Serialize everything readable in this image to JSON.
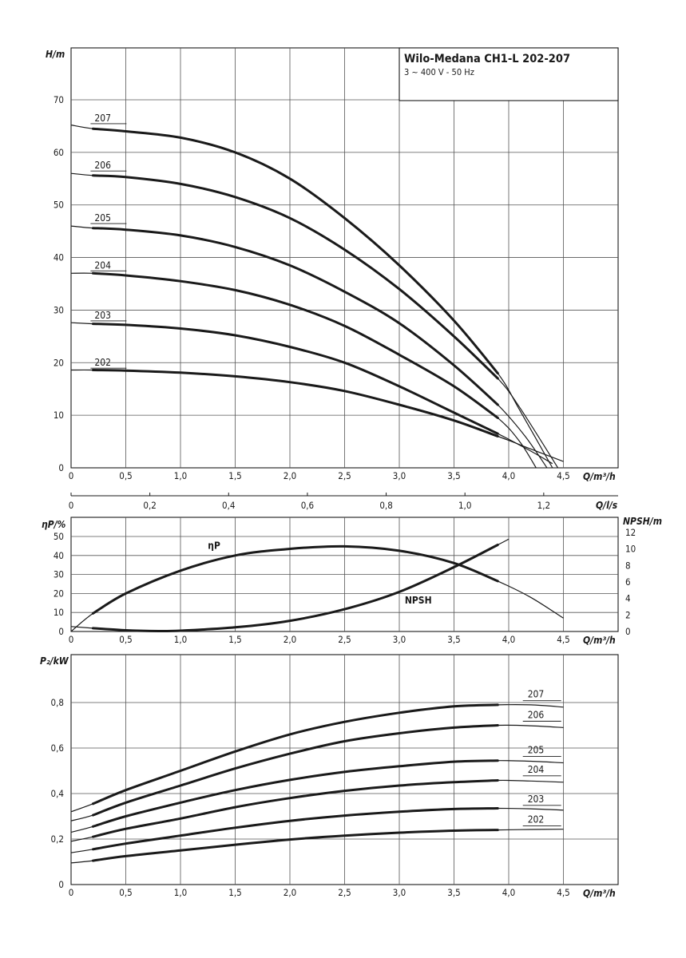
{
  "header": {
    "title": "Wilo-Medana CH1-L 202-207",
    "subtitle": "3 ~ 400 V - 50 Hz"
  },
  "colors": {
    "line": "#1a1a1a",
    "grid": "#555555",
    "background": "#ffffff"
  },
  "x_axis": {
    "label_m3h": "Q/m³/h",
    "label_ls": "Q/l/s",
    "ticks_m3h": [
      "0",
      "0,5",
      "1,0",
      "1,5",
      "2,0",
      "2,5",
      "3,0",
      "3,5",
      "4,0",
      "4,5"
    ],
    "ticks_ls": [
      "0",
      "0,2",
      "0,4",
      "0,6",
      "0,8",
      "1,0",
      "1,2"
    ]
  },
  "chart_data": [
    {
      "type": "line",
      "panel": "head",
      "ylabel": "H/m",
      "xlabel": "Q/m³/h",
      "xlim": [
        0,
        5
      ],
      "ylim": [
        0,
        70
      ],
      "grid": true,
      "yticks": [
        "0",
        "10",
        "20",
        "30",
        "40",
        "50",
        "60",
        "70"
      ],
      "series": [
        {
          "name": "207",
          "label_x": 0.2,
          "label_y": 65,
          "x": [
            0,
            0.2,
            0.5,
            1.0,
            1.5,
            2.0,
            2.5,
            3.0,
            3.5,
            3.9,
            4.1,
            4.4
          ],
          "y": [
            65.2,
            64.5,
            64.0,
            62.8,
            60.0,
            55.0,
            47.5,
            38.5,
            28.0,
            18.0,
            11.0,
            0
          ]
        },
        {
          "name": "206",
          "label_x": 0.2,
          "label_y": 56,
          "x": [
            0,
            0.2,
            0.5,
            1.0,
            1.5,
            2.0,
            2.5,
            3.0,
            3.5,
            3.9,
            4.1,
            4.45
          ],
          "y": [
            56.0,
            55.6,
            55.3,
            54.0,
            51.5,
            47.5,
            41.5,
            34.0,
            25.0,
            17.0,
            11.5,
            0
          ]
        },
        {
          "name": "205",
          "label_x": 0.2,
          "label_y": 46,
          "x": [
            0,
            0.2,
            0.5,
            1.0,
            1.5,
            2.0,
            2.5,
            3.0,
            3.5,
            3.9,
            4.15,
            4.35
          ],
          "y": [
            46.0,
            45.6,
            45.3,
            44.2,
            42.0,
            38.5,
            33.5,
            27.5,
            19.5,
            12.0,
            6.0,
            0
          ]
        },
        {
          "name": "204",
          "label_x": 0.2,
          "label_y": 37,
          "x": [
            0,
            0.2,
            0.5,
            1.0,
            1.5,
            2.0,
            2.5,
            3.0,
            3.5,
            3.9,
            4.1,
            4.25
          ],
          "y": [
            37.0,
            37.0,
            36.6,
            35.5,
            33.8,
            31.0,
            27.0,
            21.5,
            15.5,
            9.5,
            5.0,
            0
          ]
        },
        {
          "name": "203",
          "label_x": 0.2,
          "label_y": 27.5,
          "x": [
            0,
            0.2,
            0.5,
            1.0,
            1.5,
            2.0,
            2.5,
            3.0,
            3.5,
            3.9,
            4.2,
            4.4
          ],
          "y": [
            27.6,
            27.4,
            27.2,
            26.5,
            25.2,
            23.0,
            20.0,
            15.5,
            10.5,
            6.5,
            3.2,
            0.8
          ]
        },
        {
          "name": "202",
          "label_x": 0.2,
          "label_y": 18.5,
          "x": [
            0,
            0.2,
            0.5,
            1.0,
            1.5,
            2.0,
            2.5,
            3.0,
            3.5,
            3.9,
            4.2,
            4.5
          ],
          "y": [
            18.6,
            18.6,
            18.5,
            18.1,
            17.4,
            16.3,
            14.6,
            12.0,
            9.0,
            6.0,
            3.6,
            1.2
          ]
        }
      ]
    },
    {
      "type": "line",
      "panel": "efficiency_npsh",
      "ylabel": "ηP/%",
      "ylabel_right": "NPSH/m",
      "xlabel": "Q/m³/h",
      "xlim": [
        0,
        5
      ],
      "ylim": [
        0,
        52
      ],
      "ylim_right": [
        0,
        12.5
      ],
      "grid": true,
      "yticks": [
        "0",
        "10",
        "20",
        "30",
        "40",
        "50"
      ],
      "yticks_right": [
        "0",
        "2",
        "4",
        "6",
        "8",
        "10",
        "12"
      ],
      "series": [
        {
          "name": "ηP",
          "axis": "left",
          "label_x": 1.25,
          "label_y": 43.5,
          "x": [
            0,
            0.2,
            0.5,
            1.0,
            1.5,
            2.0,
            2.5,
            3.0,
            3.5,
            3.9,
            4.2,
            4.5
          ],
          "y": [
            0,
            9.5,
            20.0,
            32.0,
            40.0,
            43.5,
            44.8,
            42.5,
            36.0,
            26.5,
            18.0,
            7.0
          ]
        },
        {
          "name": "NPSH",
          "axis": "right",
          "label_x": 3.05,
          "label_y": 3.4,
          "x": [
            0,
            0.2,
            0.5,
            0.8,
            1.0,
            1.5,
            2.0,
            2.5,
            3.0,
            3.5,
            3.9,
            4.0
          ],
          "y": [
            0.6,
            0.4,
            0.15,
            0.05,
            0.1,
            0.5,
            1.3,
            2.7,
            4.8,
            7.8,
            10.5,
            11.2
          ]
        }
      ]
    },
    {
      "type": "line",
      "panel": "power",
      "ylabel": "P₂/kW",
      "xlabel": "Q/m³/h",
      "xlim": [
        0,
        5
      ],
      "ylim": [
        0,
        0.9
      ],
      "grid": true,
      "yticks": [
        "0",
        "0,2",
        "0,4",
        "0,6",
        "0,8"
      ],
      "series": [
        {
          "name": "207",
          "label_x": 4.1,
          "label_y": 0.815,
          "x": [
            0,
            0.2,
            0.5,
            1.0,
            1.5,
            2.0,
            2.5,
            3.0,
            3.5,
            3.9,
            4.2,
            4.5
          ],
          "y": [
            0.32,
            0.355,
            0.415,
            0.5,
            0.585,
            0.66,
            0.715,
            0.755,
            0.783,
            0.79,
            0.79,
            0.78
          ]
        },
        {
          "name": "206",
          "label_x": 4.1,
          "label_y": 0.725,
          "x": [
            0,
            0.2,
            0.5,
            1.0,
            1.5,
            2.0,
            2.5,
            3.0,
            3.5,
            3.9,
            4.2,
            4.5
          ],
          "y": [
            0.28,
            0.305,
            0.36,
            0.435,
            0.51,
            0.575,
            0.63,
            0.665,
            0.69,
            0.7,
            0.698,
            0.69
          ]
        },
        {
          "name": "205",
          "label_x": 4.1,
          "label_y": 0.57,
          "x": [
            0,
            0.2,
            0.5,
            1.0,
            1.5,
            2.0,
            2.5,
            3.0,
            3.5,
            3.9,
            4.2,
            4.5
          ],
          "y": [
            0.23,
            0.255,
            0.3,
            0.36,
            0.415,
            0.46,
            0.495,
            0.52,
            0.54,
            0.545,
            0.542,
            0.535
          ]
        },
        {
          "name": "204",
          "label_x": 4.1,
          "label_y": 0.485,
          "x": [
            0,
            0.2,
            0.5,
            1.0,
            1.5,
            2.0,
            2.5,
            3.0,
            3.5,
            3.9,
            4.2,
            4.5
          ],
          "y": [
            0.19,
            0.21,
            0.245,
            0.29,
            0.34,
            0.38,
            0.412,
            0.435,
            0.45,
            0.458,
            0.455,
            0.45
          ]
        },
        {
          "name": "203",
          "label_x": 4.1,
          "label_y": 0.355,
          "x": [
            0,
            0.2,
            0.5,
            1.0,
            1.5,
            2.0,
            2.5,
            3.0,
            3.5,
            3.9,
            4.2,
            4.5
          ],
          "y": [
            0.14,
            0.155,
            0.18,
            0.215,
            0.25,
            0.28,
            0.303,
            0.32,
            0.332,
            0.335,
            0.333,
            0.327
          ]
        },
        {
          "name": "202",
          "label_x": 4.1,
          "label_y": 0.265,
          "x": [
            0,
            0.2,
            0.5,
            1.0,
            1.5,
            2.0,
            2.5,
            3.0,
            3.5,
            3.9,
            4.2,
            4.5
          ],
          "y": [
            0.095,
            0.105,
            0.125,
            0.15,
            0.175,
            0.198,
            0.215,
            0.228,
            0.237,
            0.24,
            0.242,
            0.243
          ]
        }
      ]
    }
  ]
}
